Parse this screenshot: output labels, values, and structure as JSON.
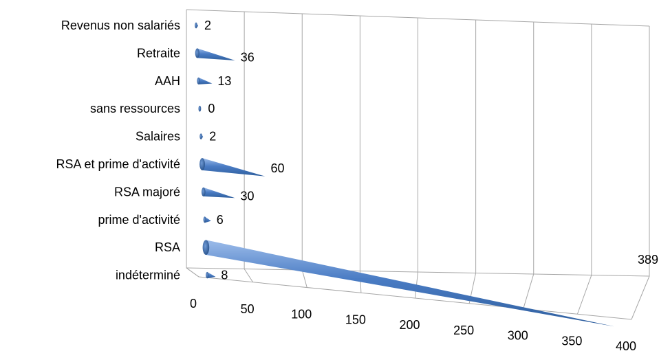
{
  "chart_data": {
    "type": "bar",
    "orientation": "horizontal",
    "style": "3d-cone",
    "categories": [
      "Revenus non salariés",
      "Retraite",
      "AAH",
      "sans ressources",
      "Salaires",
      "RSA et prime d'activité",
      "RSA majoré",
      "prime d'activité",
      "RSA",
      "indéterminé"
    ],
    "values": [
      2,
      36,
      13,
      0,
      2,
      60,
      30,
      6,
      389,
      8
    ],
    "value_labels": [
      "2",
      "36",
      "13",
      "0",
      "2",
      "60",
      "30",
      "6",
      "389",
      "8"
    ],
    "xlim": [
      0,
      400
    ],
    "x_ticks": [
      "0",
      "50",
      "100",
      "150",
      "200",
      "250",
      "300",
      "350",
      "400"
    ],
    "grid": true,
    "legend": "none",
    "title": "",
    "xlabel": "",
    "ylabel": "",
    "colors": {
      "bar_dark": "#2f5f9e",
      "bar_mid": "#4a7cc4",
      "bar_light": "#9cbcea",
      "grid": "#a6a6a6"
    }
  }
}
